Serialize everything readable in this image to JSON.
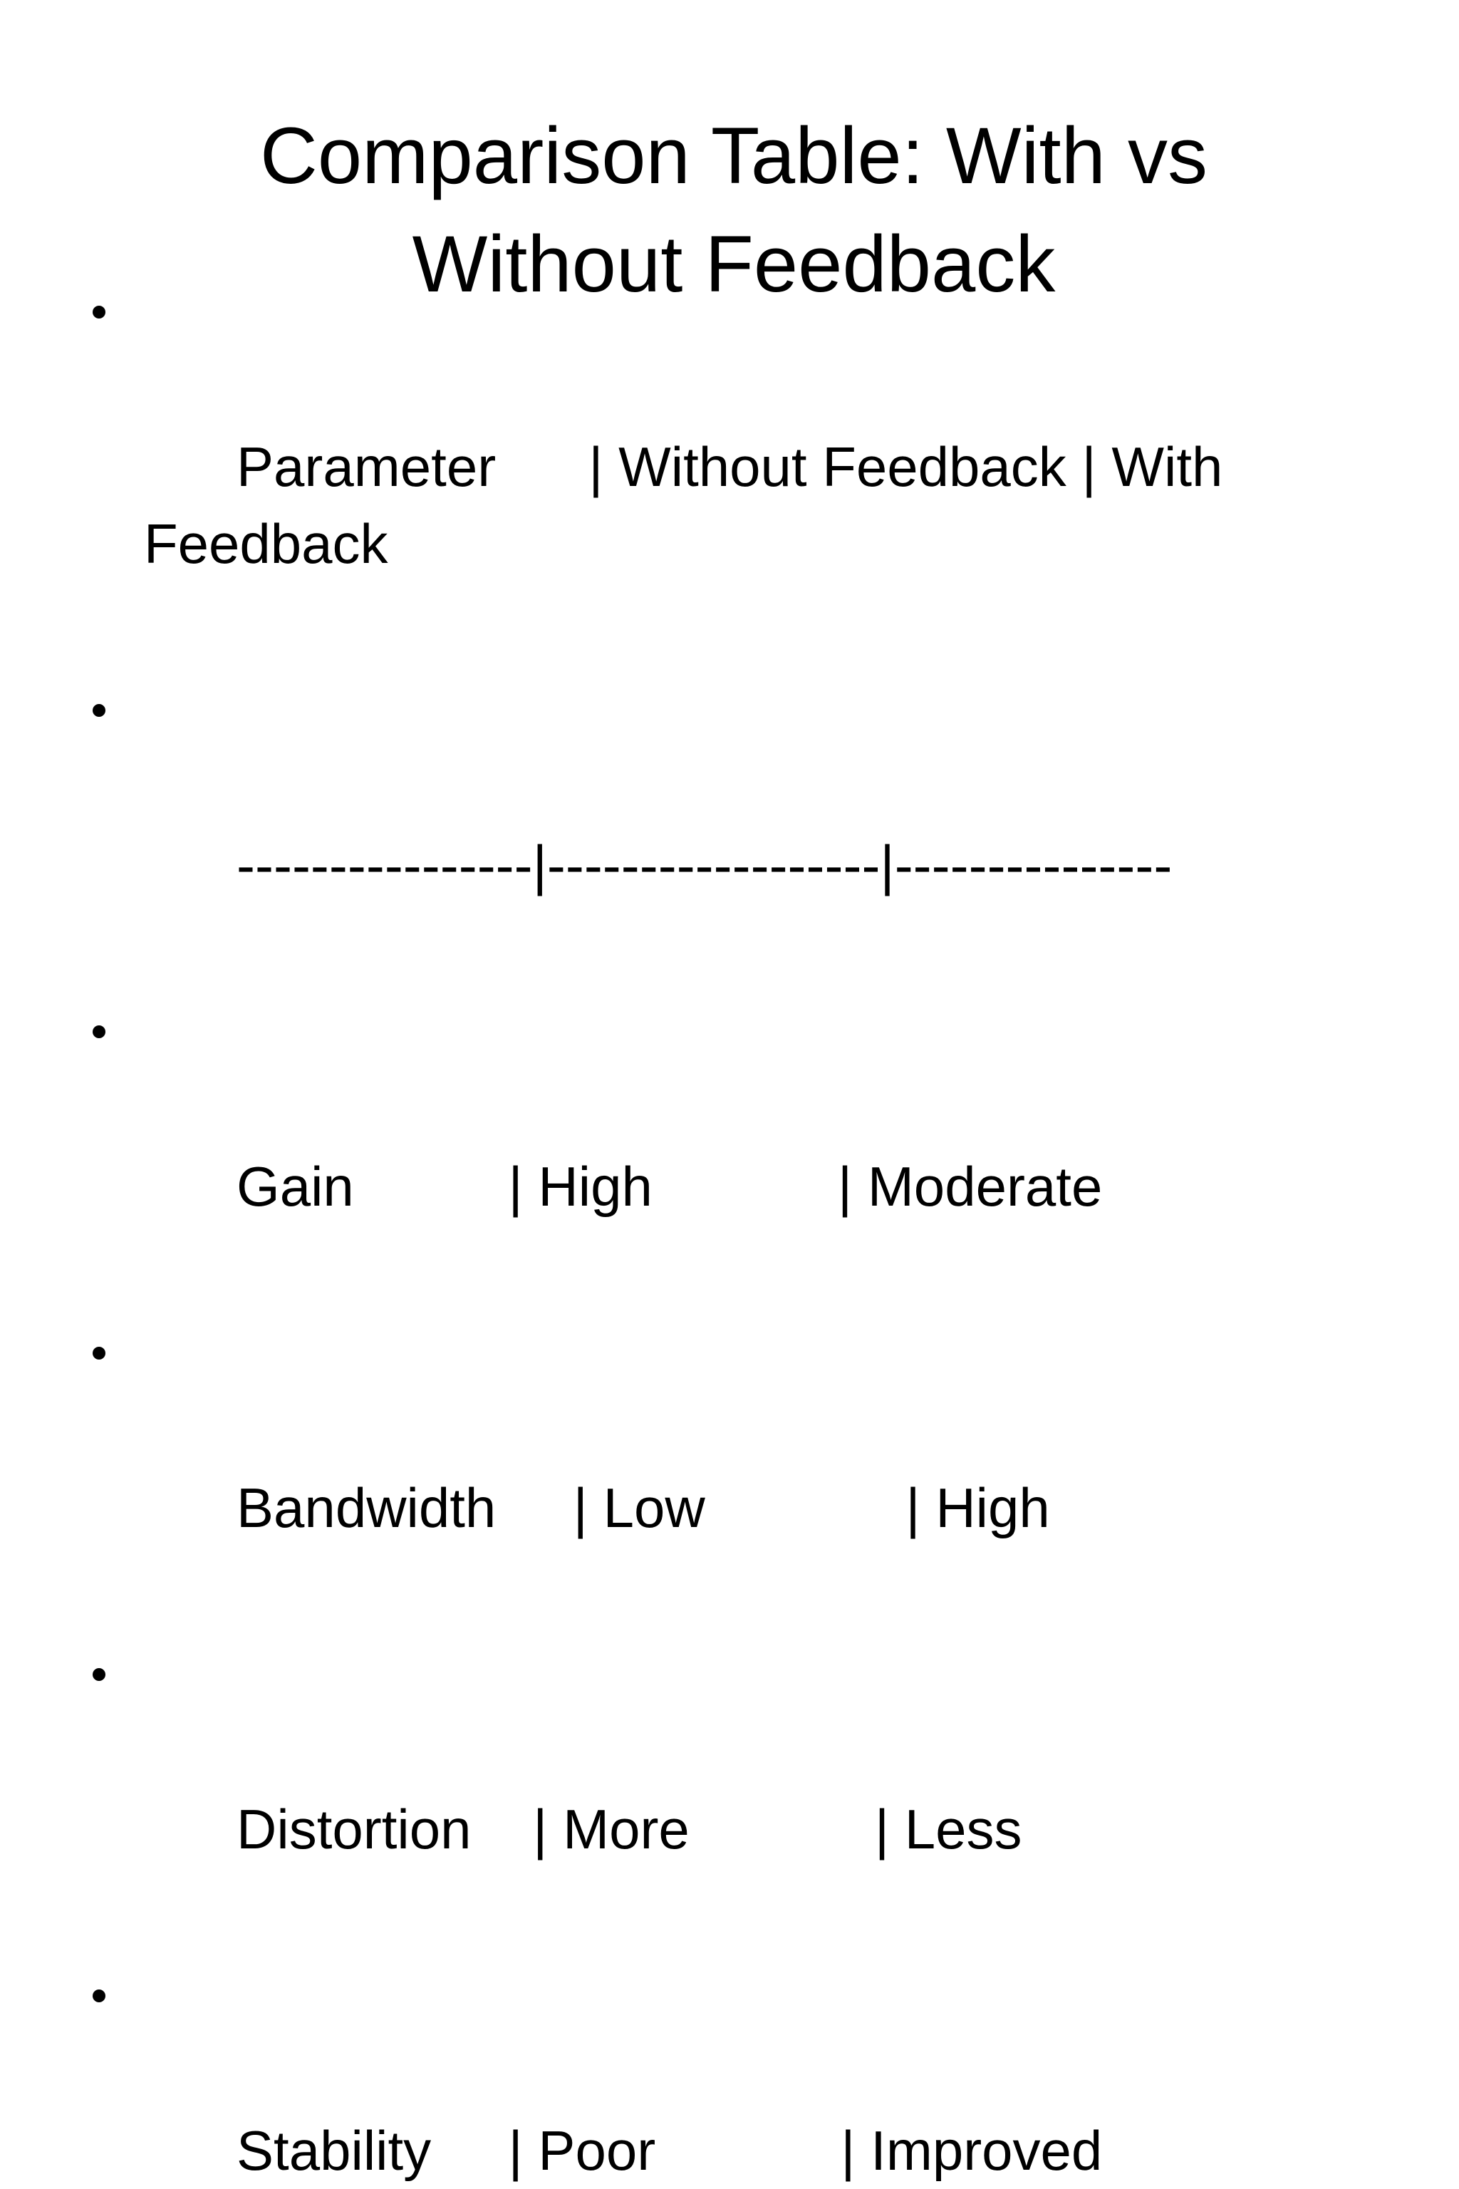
{
  "slide": {
    "title": "Comparison Table: With vs Without Feedback",
    "bullets": [
      "Parameter      | Without Feedback | With Feedback",
      "----------------|------------------|---------------",
      "Gain          | High            | Moderate",
      "Bandwidth     | Low             | High",
      "Distortion    | More            | Less",
      "Stability     | Poor            | Improved"
    ]
  }
}
